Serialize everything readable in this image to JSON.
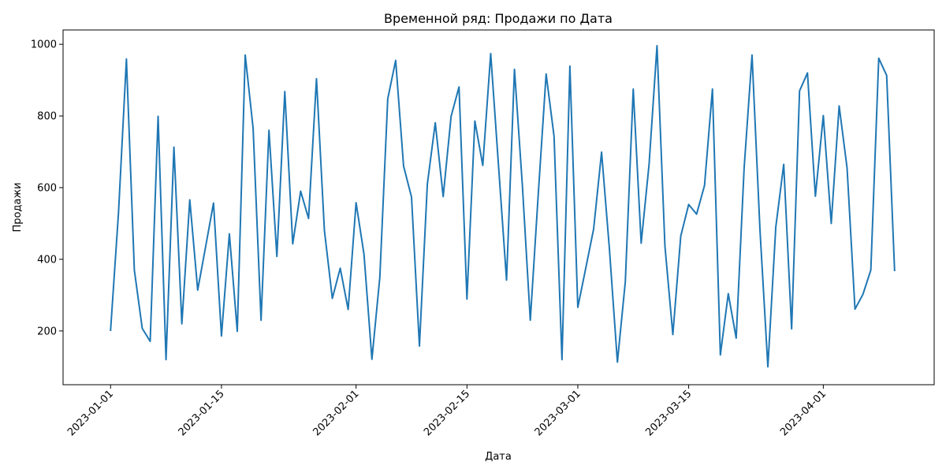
{
  "chart_data": {
    "type": "line",
    "title": "Временной ряд: Продажи по Дата",
    "xlabel": "Дата",
    "ylabel": "Продажи",
    "x_start": "2023-01-01",
    "x_ticks": [
      "2023-01-01",
      "2023-01-15",
      "2023-02-01",
      "2023-02-15",
      "2023-03-01",
      "2023-03-15",
      "2023-04-01"
    ],
    "y_ticks": [
      200,
      400,
      600,
      800,
      1000
    ],
    "xlim": [
      "2022-12-26",
      "2023-04-15"
    ],
    "ylim": [
      50,
      1040
    ],
    "grid": false,
    "legend": "none",
    "series": [
      {
        "color": "#1f77b4",
        "values": [
          202,
          530,
          959,
          370,
          207,
          171,
          799,
          120,
          713,
          220,
          566,
          314,
          435,
          557,
          186,
          471,
          199,
          970,
          765,
          230,
          760,
          408,
          868,
          443,
          590,
          514,
          904,
          481,
          291,
          375,
          260,
          558,
          414,
          121,
          350,
          848,
          955,
          660,
          574,
          158,
          610,
          781,
          575,
          799,
          881,
          289,
          786,
          662,
          974,
          657,
          342,
          930,
          606,
          230,
          580,
          917,
          743,
          120,
          939,
          266,
          375,
          485,
          699,
          426,
          113,
          338,
          875,
          445,
          665,
          996,
          437,
          190,
          465,
          553,
          526,
          606,
          875,
          133,
          304,
          180,
          654,
          970,
          483,
          100,
          490,
          665,
          206,
          870,
          920,
          576,
          801,
          500,
          828,
          655,
          261,
          302,
          370,
          961,
          913,
          369
        ]
      }
    ]
  }
}
